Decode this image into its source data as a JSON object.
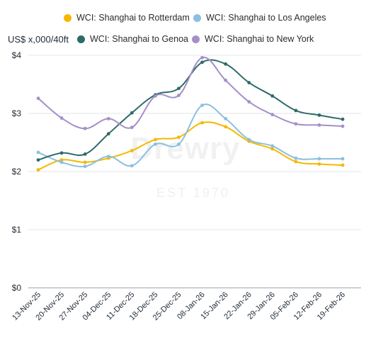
{
  "chart_data": {
    "type": "line",
    "title": "",
    "xlabel": "",
    "ylabel": "US$ x,000/40ft",
    "ylim": [
      0,
      4
    ],
    "yticks": [
      0,
      1,
      2,
      3,
      4
    ],
    "ytick_labels": [
      "$0",
      "$1",
      "$2",
      "$3",
      "$4"
    ],
    "categories": [
      "13-Nov-25",
      "20-Nov-25",
      "27-Nov-25",
      "04-Dec-25",
      "11-Dec-25",
      "18-Dec-25",
      "25-Dec-25",
      "08-Jan-26",
      "15-Jan-26",
      "22-Jan-26",
      "29-Jan-26",
      "05-Feb-26",
      "12-Feb-26",
      "19-Feb-26"
    ],
    "grid": "horizontal",
    "legend_position": "top",
    "watermark": {
      "text": "Drewry",
      "subtext": "EST 1970"
    },
    "series": [
      {
        "name": "WCI: Shanghai to Rotterdam",
        "color": "#f5b800",
        "values": [
          2.03,
          2.2,
          2.16,
          2.23,
          2.36,
          2.55,
          2.59,
          2.84,
          2.77,
          2.52,
          2.39,
          2.17,
          2.13,
          2.11
        ]
      },
      {
        "name": "WCI: Shanghai to Los Angeles",
        "color": "#8bbfe0",
        "values": [
          2.33,
          2.16,
          2.09,
          2.26,
          2.1,
          2.47,
          2.47,
          3.14,
          2.91,
          2.55,
          2.44,
          2.23,
          2.22,
          2.22
        ]
      },
      {
        "name": "WCI: Shanghai to Genoa",
        "color": "#2d6b68",
        "values": [
          2.2,
          2.32,
          2.3,
          2.65,
          3.01,
          3.32,
          3.43,
          3.88,
          3.85,
          3.53,
          3.3,
          3.05,
          2.97,
          2.9
        ]
      },
      {
        "name": "WCI: Shanghai to New York",
        "color": "#a58fc8",
        "values": [
          3.26,
          2.92,
          2.74,
          2.91,
          2.76,
          3.3,
          3.31,
          3.96,
          3.57,
          3.2,
          2.98,
          2.82,
          2.8,
          2.78
        ]
      }
    ]
  }
}
